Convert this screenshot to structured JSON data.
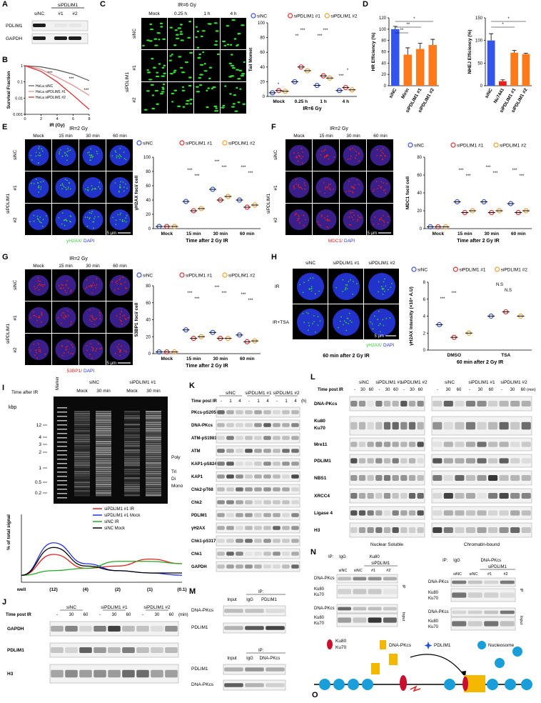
{
  "panels": {
    "A": {
      "label": "A",
      "group": "siPDLIM1",
      "lanes": [
        "siNC",
        "#1",
        "#2"
      ],
      "rows": [
        "PDLIM1",
        "GAPDH"
      ]
    },
    "B": {
      "label": "B",
      "chart": {
        "type": "line",
        "y_label": "Survival Fraction",
        "x_label": "IR (Gy)",
        "x": [
          0,
          2,
          4,
          6,
          8
        ],
        "xlim": [
          0,
          8
        ],
        "xticks": [
          0,
          2,
          4,
          6,
          8
        ],
        "ylim": [
          0.001,
          1
        ],
        "yticks": [
          0.001,
          0.01,
          0.1,
          1
        ],
        "log_y": true,
        "series": [
          {
            "name": "HeLa siNC",
            "color": "#555555",
            "values": [
              1,
              0.85,
              0.55,
              0.3,
              0.12
            ]
          },
          {
            "name": "HeLa siPDLIM1 #1",
            "color": "#e88a8a",
            "values": [
              1,
              0.6,
              0.2,
              0.06,
              0.015
            ]
          },
          {
            "name": "HeLa siPDLIM1 #2",
            "color": "#e02020",
            "values": [
              1,
              0.45,
              0.1,
              0.015,
              0.002
            ]
          }
        ],
        "annotations": [
          "***",
          "***",
          "***"
        ]
      }
    },
    "C": {
      "label": "C",
      "title": "IR=6 Gy",
      "columns": [
        "Mock",
        "0.25 h",
        "1 h",
        "4 h"
      ],
      "rows": [
        "siNC",
        "siPDLIM1",
        "#1",
        "#2"
      ],
      "chart": {
        "type": "scatter",
        "y_label": "Tail Momet",
        "x_label": "IR=6 Gy",
        "categories": [
          "Mock",
          "0.25 h",
          "1 h",
          "4 h"
        ],
        "ylim": [
          0,
          100
        ],
        "yticks": [
          0,
          20,
          40,
          60,
          80,
          100
        ],
        "series": [
          {
            "name": "siNC",
            "color": "#3355dd",
            "values": [
              5,
              20,
              15,
              8
            ]
          },
          {
            "name": "siPDLIM1 #1",
            "color": "#e03030",
            "values": [
              8,
              40,
              28,
              12
            ]
          },
          {
            "name": "siPDLIM1 #2",
            "color": "#f0a030",
            "values": [
              7,
              35,
              25,
              9
            ]
          }
        ],
        "annotations": [
          "*",
          "**",
          "***",
          "***",
          "***",
          "***",
          "*"
        ]
      }
    },
    "D": {
      "label": "D",
      "hr": {
        "type": "bar",
        "y_label": "HR Efficiency (%)",
        "categories": [
          "siNC",
          "Mirin",
          "siPDLIM1 #1",
          "siPDLIM1 #2"
        ],
        "values": [
          100,
          55,
          65,
          72
        ],
        "errors": [
          5,
          12,
          10,
          10
        ],
        "colors": [
          "#3355ee",
          "#ff7a1a",
          "#ff7a1a",
          "#ff7a1a"
        ],
        "ylim": [
          0,
          120
        ],
        "yticks": [
          0,
          20,
          40,
          60,
          80,
          100,
          120
        ],
        "annotations": [
          "*",
          "**",
          "**"
        ]
      },
      "nhej": {
        "type": "bar",
        "y_label": "NHEJ Efficiency (%)",
        "categories": [
          "siNC",
          "Nu7441",
          "siPDLIM1 #1",
          "siPDLIM1 #2"
        ],
        "values": [
          100,
          10,
          73,
          70
        ],
        "errors": [
          15,
          3,
          5,
          2
        ],
        "colors": [
          "#3355ee",
          "#e82020",
          "#ff7a1a",
          "#ff7a1a"
        ],
        "ylim": [
          0,
          150
        ],
        "yticks": [
          0,
          50,
          100,
          150
        ],
        "annotations": [
          "*",
          "*"
        ]
      }
    },
    "E": {
      "label": "E",
      "title": "IR=2 Gy",
      "columns": [
        "Mock",
        "15 min",
        "30 min",
        "60 min"
      ],
      "rows": [
        "siNC",
        "siPDLIM1",
        "#1",
        "#2"
      ],
      "scale": "5 μm",
      "stain": [
        "γH2AX/",
        "DAPI"
      ],
      "chart": {
        "type": "scatter",
        "y_label": "γH2AX foci/ cell",
        "x_label": "Time after 2 Gy IR",
        "categories": [
          "Mock",
          "15 min",
          "30 min",
          "60 min"
        ],
        "ylim": [
          0,
          100
        ],
        "yticks": [
          0,
          20,
          40,
          60,
          80,
          100
        ],
        "series": [
          {
            "name": "siNC",
            "color": "#3355dd",
            "values": [
              3,
              38,
              55,
              40
            ]
          },
          {
            "name": "siPDLIM1 #1",
            "color": "#e03030",
            "values": [
              3,
              25,
              40,
              30
            ]
          },
          {
            "name": "siPDLIM1 #2",
            "color": "#f0a030",
            "values": [
              3,
              28,
              45,
              33
            ]
          }
        ],
        "annotations": [
          "***",
          "***",
          "***",
          "***",
          "***",
          "***"
        ]
      }
    },
    "F": {
      "label": "F",
      "title": "IR=2 Gy",
      "columns": [
        "Mock",
        "15 min",
        "30 min",
        "60 min"
      ],
      "rows": [
        "siNC",
        "siPDLIM1",
        "#1",
        "#2"
      ],
      "scale": "5 μm",
      "stain": [
        "MDC1/",
        "DAPI"
      ],
      "chart": {
        "type": "scatter",
        "y_label": "MDC1 foci/ cell",
        "x_label": "Time after 2 Gy IR",
        "categories": [
          "Mock",
          "15 min",
          "30 min",
          "60 min"
        ],
        "ylim": [
          0,
          80
        ],
        "yticks": [
          0,
          20,
          40,
          60,
          80
        ],
        "series": [
          {
            "name": "siNC",
            "color": "#3355dd",
            "values": [
              2,
              30,
              30,
              28
            ]
          },
          {
            "name": "siPDLIM1 #1",
            "color": "#e03030",
            "values": [
              2,
              18,
              18,
              18
            ]
          },
          {
            "name": "siPDLIM1 #2",
            "color": "#f0a030",
            "values": [
              2,
              20,
              20,
              20
            ]
          }
        ],
        "annotations": [
          "***",
          "***",
          "***",
          "***",
          "***",
          "***"
        ]
      }
    },
    "G": {
      "label": "G",
      "title": "IR=2 Gy",
      "columns": [
        "Mock",
        "15 min",
        "30 min",
        "60 min"
      ],
      "rows": [
        "siNC",
        "siPDLIM1",
        "#1",
        "#2"
      ],
      "scale": "5 μm",
      "stain": [
        "53BP1/",
        "DAPI"
      ],
      "chart": {
        "type": "scatter",
        "y_label": "53BP1 foci/ cell",
        "x_label": "Time after 2 Gy IR",
        "categories": [
          "Mock",
          "15 min",
          "30 min",
          "60 min"
        ],
        "ylim": [
          0,
          80
        ],
        "yticks": [
          0,
          20,
          40,
          60,
          80
        ],
        "series": [
          {
            "name": "siNC",
            "color": "#3355dd",
            "values": [
              2,
              28,
              25,
              22
            ]
          },
          {
            "name": "siPDLIM1 #1",
            "color": "#e03030",
            "values": [
              2,
              18,
              18,
              14
            ]
          },
          {
            "name": "siPDLIM1 #2",
            "color": "#f0a030",
            "values": [
              2,
              20,
              18,
              15
            ]
          }
        ],
        "annotations": [
          "***",
          "***",
          "***",
          "***",
          "***",
          "***"
        ]
      }
    },
    "H": {
      "label": "H",
      "columns": [
        "siNC",
        "siPDLIM1 #1",
        "siPDLIM1 #2"
      ],
      "rows": [
        "IR",
        "IR+TSA"
      ],
      "scale": "5 μm",
      "stain": [
        "γH2AX/",
        "DAPI"
      ],
      "caption": "60 min after 2 Gy IR",
      "chart": {
        "type": "scatter",
        "y_label": "γH2AX Intensity (×10⁴ A.U)",
        "x_label": "60 min after 2 Gy IR",
        "categories": [
          "DMSO",
          "TSA"
        ],
        "ylim": [
          0,
          8
        ],
        "yticks": [
          0,
          2,
          4,
          6,
          8
        ],
        "series": [
          {
            "name": "siNC",
            "color": "#3355dd",
            "values": [
              3,
              4
            ]
          },
          {
            "name": "siPDLIM1 #1",
            "color": "#e03030",
            "values": [
              1.5,
              4.5
            ]
          },
          {
            "name": "siPDLIM1 #2",
            "color": "#f0a030",
            "values": [
              2,
              4
            ]
          }
        ],
        "annotations": [
          "***",
          "***",
          "N.S",
          "N.S"
        ]
      }
    },
    "I": {
      "label": "I",
      "time": "Time after IR",
      "marker": "Marker",
      "groups": [
        "siNC",
        "siPDLIM1 #1"
      ],
      "lanes": [
        "Mock",
        "30 min",
        "Mock",
        "30 min"
      ],
      "unit": "kbp",
      "sizes": [
        "12",
        "4",
        "3",
        "2",
        "1",
        "0.5",
        "0.2"
      ],
      "bands": [
        "Poly",
        "Tri",
        "Di",
        "Mono"
      ],
      "chart": {
        "type": "line",
        "y_label": "% of total signal",
        "categories": [
          "well",
          "(12)",
          "(4)",
          "(2)",
          "(1)",
          "(0.1)"
        ],
        "ylim": [
          0,
          20
        ],
        "series": [
          {
            "name": "siPDLIM1 #1 IR",
            "color": "#e02020",
            "values": [
              3,
              12,
              6,
              7,
              10,
              8
            ]
          },
          {
            "name": "siPDLIM1 #1 Mock",
            "color": "#2233dd",
            "values": [
              3,
              17,
              8,
              5,
              4,
              3
            ]
          },
          {
            "name": "siNC IR",
            "color": "#22aa22",
            "values": [
              3,
              5,
              6,
              9,
              9,
              8
            ]
          },
          {
            "name": "siNC Mock",
            "color": "#000000",
            "values": [
              3,
              15,
              7,
              5,
              4,
              4
            ]
          }
        ]
      }
    },
    "J": {
      "label": "J",
      "time": "Time post IR",
      "groups": [
        "siNC",
        "siPDLIM1 #1",
        "siPDLIM1 #2"
      ],
      "lanes": [
        "-",
        "30",
        "60",
        "-",
        "30",
        "60",
        "-",
        "30",
        "60"
      ],
      "unit": "(min)",
      "rows": [
        "GAPDH",
        "PDLIM1",
        "H3"
      ]
    },
    "K": {
      "label": "K",
      "time": "Time post IR",
      "groups": [
        "siNC",
        "siPDLIM1 #1",
        "siPDLIM1 #2"
      ],
      "lanes": [
        "-",
        "1",
        "4",
        "-",
        "1",
        "4",
        "-",
        "1",
        "4"
      ],
      "unit": "(h)",
      "rows": [
        "PKcs-pS2056",
        "DNA-PKcs",
        "ATM-pS1981",
        "ATM",
        "KAP1-pS824",
        "KAP1",
        "Chk2-pT68",
        "Chk2",
        "PDLIM1",
        "γH2AX",
        "Chk1-pS317",
        "Chk1",
        "GAPDH"
      ]
    },
    "L": {
      "label": "L",
      "time": "Time post IR",
      "groups": [
        "siNC",
        "siPDLIM1 #1",
        "siPDLIM1 #2"
      ],
      "lanes": [
        "-",
        "30",
        "60",
        "-",
        "30",
        "60",
        "-",
        "30",
        "60"
      ],
      "unit": "(min)",
      "rows": [
        "DNA-PKcs",
        "Ku80",
        "Ku70",
        "Mre11",
        "PDLIM1",
        "NBS1",
        "XRCC4",
        "Ligase 4",
        "H3"
      ],
      "fractions": [
        "Nuclear Soluble",
        "Chromatin-bound"
      ]
    },
    "M": {
      "label": "M",
      "top": {
        "ip": "IP:",
        "lanes": [
          "Input",
          "IgG",
          "PDLIM1"
        ],
        "rows": [
          "DNA-PKcs",
          "PDLIM1"
        ]
      },
      "bottom": {
        "ip": "IP:",
        "lanes": [
          "Input",
          "IgG",
          "DNA-PKcs"
        ],
        "rows": [
          "PDLIM1",
          "DNA-PKcs"
        ]
      }
    },
    "N": {
      "label": "N",
      "left": {
        "ip": "IP:",
        "igg": "IgG",
        "target": "Ku80",
        "group": "siPDLIM1",
        "lanes": [
          "siNC",
          "siNC",
          "#1",
          "#2"
        ],
        "rows": [
          "DNA-PKcs",
          "Ku80",
          "Ku70",
          "DNA-PKcs",
          "Ku80",
          "Ku70"
        ],
        "sides": [
          "IP",
          "Input"
        ]
      },
      "right": {
        "ip": "IP:",
        "igg": "IgG",
        "target": "DNA-PKcs",
        "group": "siPDLIM1",
        "lanes": [
          "siNC",
          "siNC",
          "#1",
          "#2"
        ],
        "rows": [
          "DNA-PKcs",
          "Ku80",
          "Ku70",
          "DNA-PKcs",
          "Ku80",
          "Ku70"
        ],
        "sides": [
          "IP",
          "Input"
        ]
      }
    },
    "O": {
      "label": "O",
      "legend": [
        "Ku80",
        "Ku70",
        "DNA-PKcs",
        "PDLIM1",
        "Nucleosome"
      ]
    }
  }
}
